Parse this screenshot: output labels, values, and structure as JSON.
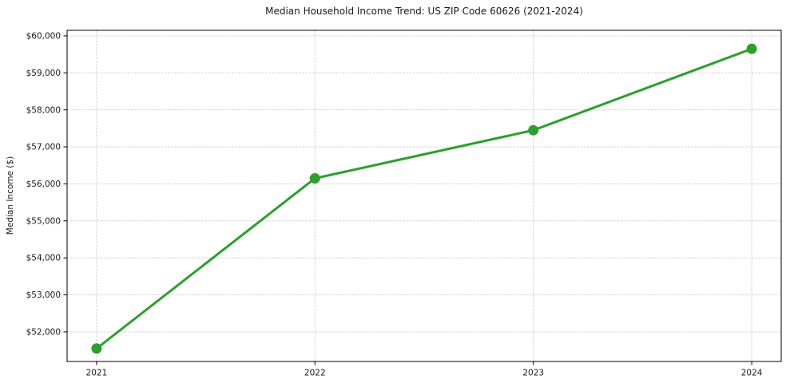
{
  "figure": {
    "background": "#ffffff"
  },
  "chart_data": {
    "type": "line",
    "title": "Median Household Income Trend: US ZIP Code 60626 (2021-2024)",
    "xlabel": "",
    "ylabel": "Median Income ($)",
    "x": [
      2021,
      2022,
      2023,
      2024
    ],
    "x_tick_labels": [
      "2021",
      "2022",
      "2023",
      "2024"
    ],
    "series": [
      {
        "name": "Median household income",
        "values": [
          51550,
          56150,
          57450,
          59650
        ]
      }
    ],
    "y_ticks": [
      52000,
      53000,
      54000,
      55000,
      56000,
      57000,
      58000,
      59000,
      60000
    ],
    "y_tick_labels": [
      "$52,000",
      "$53,000",
      "$54,000",
      "$55,000",
      "$56,000",
      "$57,000",
      "$58,000",
      "$59,000",
      "$60,000"
    ],
    "xlim": [
      2020.865,
      2024.135
    ],
    "ylim": [
      51200,
      60150
    ],
    "grid": true,
    "grid_style": "dashed",
    "legend_position": "none",
    "colors": {
      "line": "#2ca02c",
      "marker": "#2ca02c",
      "grid": "#cfcfcf",
      "spine": "#000000",
      "text": "#1a1a1a",
      "background": "#ffffff"
    },
    "marker_radius": 6.5,
    "line_width": 3
  }
}
